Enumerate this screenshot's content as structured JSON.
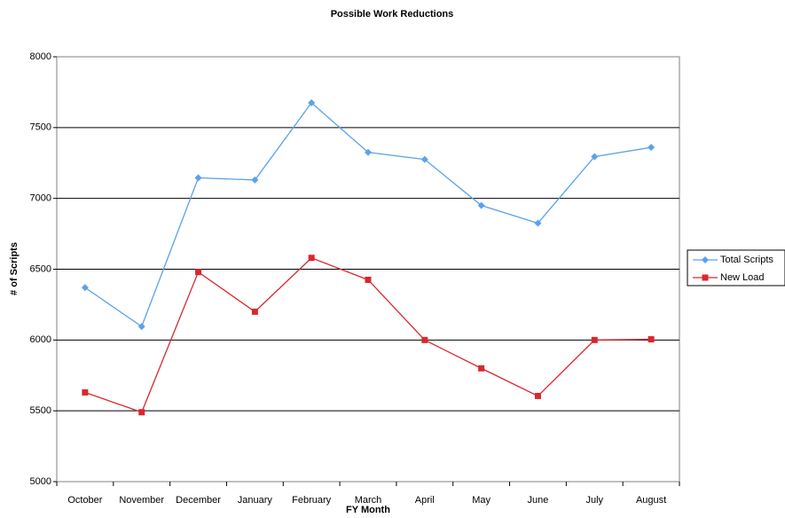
{
  "chart_data": {
    "type": "line",
    "title": "Possible Work Reductions",
    "x_label": "FY Month",
    "y_label": "# of Scripts",
    "categories": [
      "October",
      "November",
      "December",
      "January",
      "February",
      "March",
      "April",
      "May",
      "June",
      "July",
      "August"
    ],
    "series": [
      {
        "name": "Total Scripts",
        "color": "#5aa2ea",
        "marker": "diamond",
        "values": [
          6370,
          6095,
          7145,
          7130,
          7675,
          7325,
          7275,
          6950,
          6825,
          7295,
          7360
        ]
      },
      {
        "name": "New Load",
        "color": "#d9272e",
        "marker": "square",
        "values": [
          5630,
          5490,
          6480,
          6200,
          6580,
          6425,
          6000,
          5800,
          5605,
          6000,
          6005
        ]
      }
    ],
    "ylim": [
      5000,
      8000
    ],
    "yticks": [
      5000,
      5500,
      6000,
      6500,
      7000,
      7500,
      8000
    ],
    "grid": true,
    "legend": "right"
  }
}
